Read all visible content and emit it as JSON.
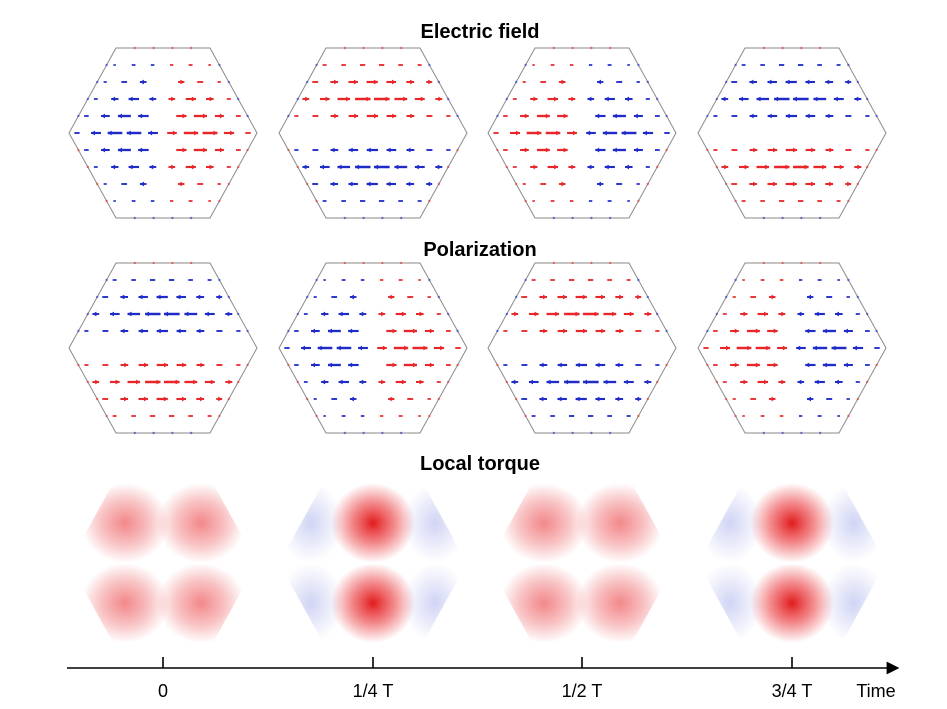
{
  "rows": [
    {
      "title": "Electric field"
    },
    {
      "title": "Polarization"
    },
    {
      "title": "Local torque"
    }
  ],
  "axis": {
    "label": "Time",
    "ticks": [
      "0",
      "1/4 T",
      "1/2 T",
      "3/4 T"
    ]
  },
  "panels": {
    "electric_field": [
      {
        "pattern": "split_vertical",
        "left": "negative",
        "right": "positive"
      },
      {
        "pattern": "split_horizontal",
        "top": "positive",
        "bottom": "negative"
      },
      {
        "pattern": "split_vertical",
        "left": "positive",
        "right": "negative"
      },
      {
        "pattern": "split_horizontal",
        "top": "negative",
        "bottom": "positive"
      }
    ],
    "polarization": [
      {
        "pattern": "split_horizontal",
        "top": "negative",
        "bottom": "positive"
      },
      {
        "pattern": "split_vertical",
        "left": "negative",
        "right": "positive"
      },
      {
        "pattern": "split_horizontal",
        "top": "positive",
        "bottom": "negative"
      },
      {
        "pattern": "split_vertical",
        "left": "positive",
        "right": "negative"
      }
    ],
    "local_torque": [
      {
        "pattern": "two_lobes_per_half",
        "center": "positive",
        "sides": "none"
      },
      {
        "pattern": "center_lobe",
        "center": "strong_positive",
        "sides": "negative"
      },
      {
        "pattern": "two_lobes_per_half",
        "center": "positive",
        "sides": "none"
      },
      {
        "pattern": "center_lobe",
        "center": "strong_positive",
        "sides": "negative"
      }
    ]
  },
  "colors": {
    "positive": "#e8262a",
    "negative": "#1f2bc8",
    "outline": "#8a8a8a",
    "axis": "#000000"
  }
}
